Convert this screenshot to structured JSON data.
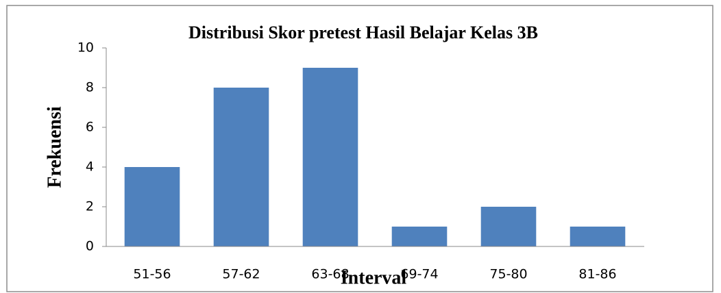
{
  "chart_data": {
    "type": "bar",
    "title": "Distribusi Skor pretest Hasil Belajar Kelas 3B",
    "x_label": "Interval",
    "y_label": "Frekuensi",
    "categories": [
      "51-56",
      "57-62",
      "63-68",
      "69-74",
      "75-80",
      "81-86"
    ],
    "values": [
      4,
      8,
      9,
      1,
      2,
      1
    ],
    "color": "#4f81bd",
    "ylim": [
      0,
      10
    ],
    "yticks": [
      0,
      2,
      4,
      6,
      8,
      10
    ],
    "grid": false
  }
}
